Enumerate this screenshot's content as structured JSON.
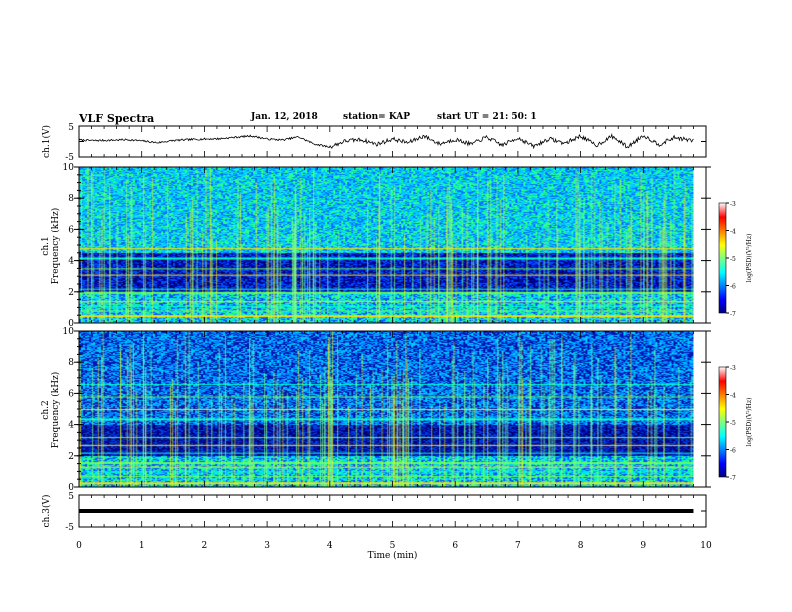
{
  "header": {
    "title": "VLF Spectra",
    "date": "Jan. 12, 2018",
    "station": "station= KAP",
    "start": "start UT =  21: 50: 1"
  },
  "chart_data": [
    {
      "type": "line",
      "ylabel": "ch.1(V)",
      "ylim": [
        -5,
        5
      ],
      "yticks": [
        "5",
        "-5"
      ],
      "x": [
        0,
        0.25,
        0.5,
        0.75,
        1,
        1.25,
        1.5,
        1.75,
        2,
        2.25,
        2.5,
        2.75,
        3,
        3.25,
        3.5,
        3.75,
        4,
        4.25,
        4.5,
        4.75,
        5,
        5.25,
        5.5,
        5.75,
        6,
        6.25,
        6.5,
        6.75,
        7,
        7.25,
        7.5,
        7.75,
        8,
        8.25,
        8.5,
        8.75,
        9,
        9.25,
        9.5,
        9.8
      ],
      "y": [
        0.5,
        0.3,
        0.4,
        0.6,
        0.2,
        -0.4,
        0.3,
        0.6,
        0.8,
        0.9,
        1.4,
        1.8,
        0.8,
        0.5,
        1.5,
        -0.8,
        -1.8,
        0.2,
        0.6,
        -0.9,
        0.8,
        -0.4,
        1.8,
        -0.8,
        0.7,
        -0.9,
        1.4,
        -1.2,
        1.2,
        -1.6,
        0.9,
        -0.6,
        1.8,
        -1.3,
        1.7,
        -1.8,
        2.0,
        -1.0,
        1.3,
        0.2
      ]
    },
    {
      "type": "heatmap",
      "ylabel": "ch.1\nFrequency (kHz)",
      "ylim": [
        0,
        10
      ],
      "yticks": [
        "0",
        "2",
        "4",
        "6",
        "8",
        "10"
      ],
      "colorbar": {
        "label": "log(PSD)(V²/Hz)",
        "range": [
          -7,
          -3
        ],
        "ticks": [
          "-3",
          "-4",
          "-5",
          "-6",
          "-7"
        ]
      }
    },
    {
      "type": "heatmap",
      "ylabel": "ch.2\nFrequency (kHz)",
      "ylim": [
        0,
        10
      ],
      "yticks": [
        "0",
        "2",
        "4",
        "6",
        "8",
        "10"
      ],
      "colorbar": {
        "label": "log(PSD)(V²/Hz)",
        "range": [
          -7,
          -3
        ],
        "ticks": [
          "-3",
          "-4",
          "-5",
          "-6",
          "-7"
        ]
      }
    },
    {
      "type": "line",
      "ylabel": "ch.3(V)",
      "ylim": [
        -5,
        5
      ],
      "yticks": [
        "5",
        "-5"
      ],
      "x": [
        0,
        9.8
      ],
      "y": [
        0,
        0
      ],
      "xlabel": "Time (min)",
      "xlim": [
        0,
        10
      ],
      "xticks": [
        "0",
        "1",
        "2",
        "3",
        "4",
        "5",
        "6",
        "7",
        "8",
        "9",
        "10"
      ]
    }
  ],
  "colors": {
    "spectrogram_low": "#00008f",
    "spectrogram_mid": "#00d6ff",
    "spectrogram_high": "#7fff00",
    "line": "#000000"
  }
}
